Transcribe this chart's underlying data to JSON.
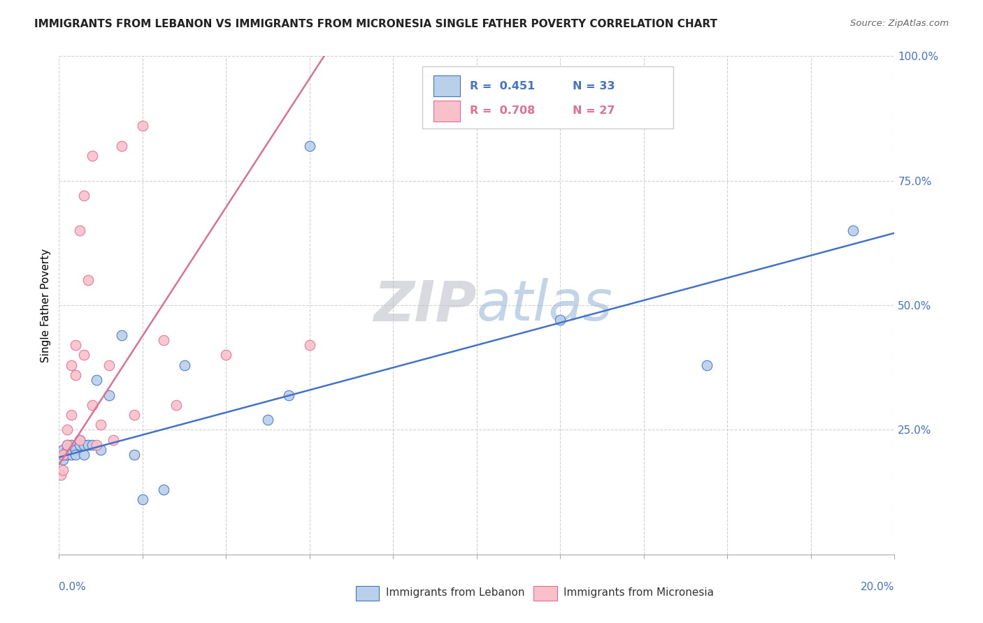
{
  "title": "IMMIGRANTS FROM LEBANON VS IMMIGRANTS FROM MICRONESIA SINGLE FATHER POVERTY CORRELATION CHART",
  "source": "Source: ZipAtlas.com",
  "ylabel": "Single Father Poverty",
  "legend_r1": "R =  0.451",
  "legend_n1": "N = 33",
  "legend_r2": "R =  0.708",
  "legend_n2": "N = 27",
  "lebanon_fill": "#b8d0ea",
  "micronesia_fill": "#f9c0cc",
  "lebanon_edge": "#4472c4",
  "micronesia_edge": "#e07090",
  "lebanon_line": "#4472c4",
  "micronesia_line": "#e07090",
  "watermark_zip": "#c8c8d0",
  "watermark_atlas": "#a8c0e0",
  "leb_x": [
    0.0005,
    0.001,
    0.001,
    0.001,
    0.0015,
    0.002,
    0.002,
    0.002,
    0.003,
    0.003,
    0.003,
    0.004,
    0.004,
    0.005,
    0.005,
    0.006,
    0.006,
    0.007,
    0.008,
    0.009,
    0.01,
    0.012,
    0.015,
    0.018,
    0.02,
    0.025,
    0.03,
    0.05,
    0.055,
    0.06,
    0.12,
    0.155,
    0.19
  ],
  "leb_y": [
    0.2,
    0.19,
    0.2,
    0.21,
    0.2,
    0.2,
    0.21,
    0.22,
    0.2,
    0.21,
    0.22,
    0.21,
    0.2,
    0.22,
    0.23,
    0.2,
    0.22,
    0.22,
    0.22,
    0.35,
    0.21,
    0.32,
    0.44,
    0.2,
    0.11,
    0.13,
    0.38,
    0.27,
    0.32,
    0.82,
    0.47,
    0.38,
    0.65
  ],
  "mic_x": [
    0.0005,
    0.001,
    0.001,
    0.002,
    0.002,
    0.003,
    0.003,
    0.004,
    0.004,
    0.005,
    0.005,
    0.006,
    0.006,
    0.007,
    0.008,
    0.008,
    0.009,
    0.01,
    0.012,
    0.013,
    0.015,
    0.018,
    0.02,
    0.025,
    0.028,
    0.04,
    0.06
  ],
  "mic_y": [
    0.16,
    0.17,
    0.2,
    0.22,
    0.25,
    0.28,
    0.38,
    0.36,
    0.42,
    0.23,
    0.65,
    0.4,
    0.72,
    0.55,
    0.3,
    0.8,
    0.22,
    0.26,
    0.38,
    0.23,
    0.82,
    0.28,
    0.86,
    0.43,
    0.3,
    0.4,
    0.42
  ],
  "xlim": [
    0,
    0.2
  ],
  "ylim": [
    0,
    1.0
  ],
  "leb_line_x0": 0.0,
  "leb_line_x1": 0.2,
  "leb_line_y0": 0.195,
  "leb_line_y1": 0.645,
  "mic_line_x0": 0.0,
  "mic_line_x1": 0.065,
  "mic_line_y0": 0.18,
  "mic_line_y1": 1.02
}
